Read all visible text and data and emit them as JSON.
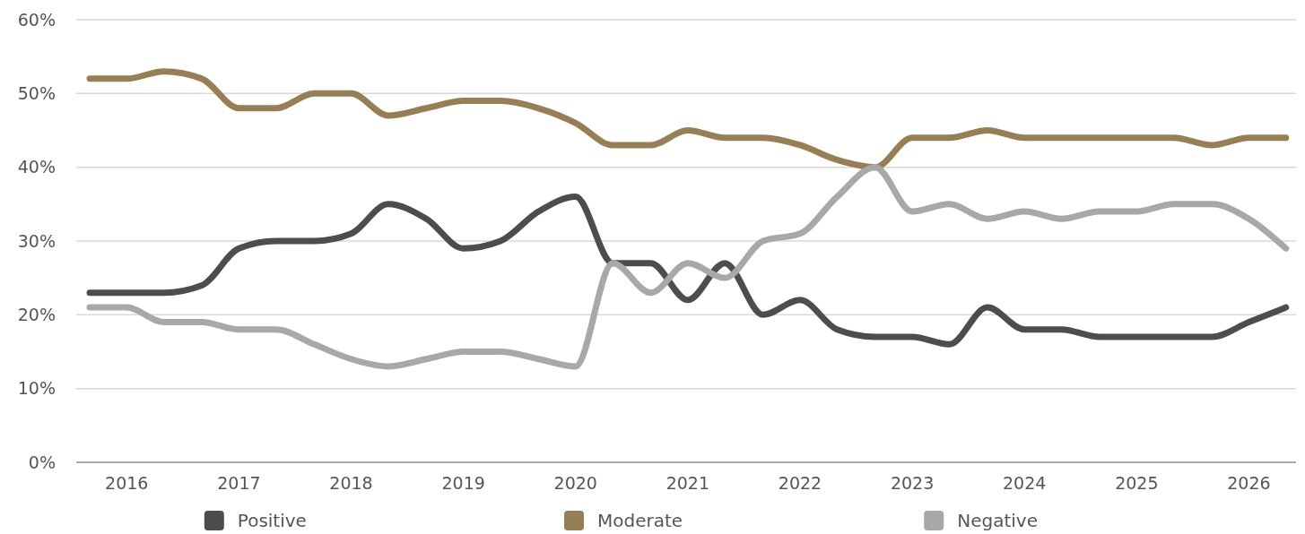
{
  "chart_data": {
    "type": "line",
    "x": [
      2015.67,
      2016,
      2016.33,
      2016.67,
      2017,
      2017.33,
      2017.67,
      2018,
      2018.33,
      2018.67,
      2019,
      2019.33,
      2019.67,
      2020,
      2020.33,
      2020.67,
      2021,
      2021.33,
      2021.67,
      2022,
      2022.33,
      2022.67,
      2023,
      2023.33,
      2023.67,
      2024,
      2024.33,
      2024.67,
      2025,
      2025.33,
      2025.67,
      2026,
      2026.33
    ],
    "series": [
      {
        "name": "Positive",
        "color": "#4d4d4d",
        "values": [
          23,
          23,
          23,
          24,
          29,
          30,
          30,
          31,
          35,
          33,
          29,
          30,
          34,
          36,
          27,
          27,
          22,
          27,
          20,
          22,
          18,
          17,
          17,
          16,
          21,
          18,
          18,
          17,
          17,
          17,
          17,
          19,
          21
        ]
      },
      {
        "name": "Moderate",
        "color": "#967e55",
        "values": [
          52,
          52,
          53,
          52,
          48,
          48,
          50,
          50,
          47,
          48,
          49,
          49,
          48,
          46,
          43,
          43,
          45,
          44,
          44,
          43,
          41,
          40,
          44,
          44,
          45,
          44,
          44,
          44,
          44,
          44,
          43,
          44,
          44
        ]
      },
      {
        "name": "Negative",
        "color": "#a8a8a8",
        "values": [
          21,
          21,
          19,
          19,
          18,
          18,
          16,
          14,
          13,
          14,
          15,
          15,
          14,
          13,
          27,
          23,
          27,
          25,
          30,
          31,
          36,
          40,
          34,
          35,
          33,
          34,
          33,
          34,
          34,
          35,
          35,
          33,
          29
        ]
      }
    ],
    "xlim": [
      2015.55,
      2026.42
    ],
    "xticks": [
      2016,
      2017,
      2018,
      2019,
      2020,
      2021,
      2022,
      2023,
      2024,
      2025,
      2026
    ],
    "ylim": [
      0,
      60
    ],
    "yticks": [
      {
        "value": 0,
        "label": "0%"
      },
      {
        "value": 10,
        "label": "10%"
      },
      {
        "value": 20,
        "label": "20%"
      },
      {
        "value": 30,
        "label": "30%"
      },
      {
        "value": 40,
        "label": "40%"
      },
      {
        "value": 50,
        "label": "50%"
      },
      {
        "value": 60,
        "label": "60%"
      }
    ],
    "grid": "y",
    "legend": "bottom",
    "marker": "none",
    "line_style": "solid"
  }
}
